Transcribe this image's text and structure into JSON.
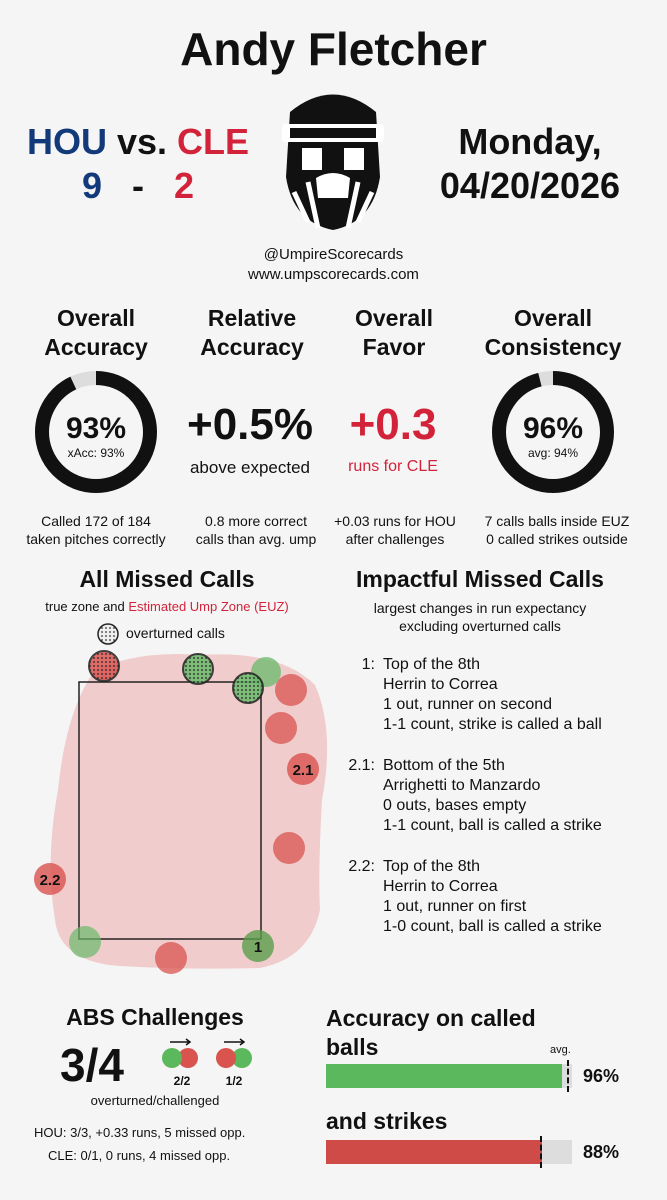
{
  "title": "Andy Fletcher",
  "teams": {
    "home": "HOU",
    "vs": "vs.",
    "away": "CLE",
    "home_score": "9",
    "dash": "-",
    "away_score": "2"
  },
  "date": {
    "line1": "Monday,",
    "line2": "04/20/2026"
  },
  "social": {
    "handle": "@UmpireScorecards",
    "site": "www.umpscorecards.com"
  },
  "metrics": {
    "accuracy": {
      "h1": "Overall",
      "h2": "Accuracy",
      "value": "93%",
      "sub": "xAcc: 93%",
      "fraction": 0.93,
      "desc1": "Called 172 of 184",
      "desc2": "taken pitches correctly"
    },
    "relative": {
      "h1": "Relative",
      "h2": "Accuracy",
      "value": "+0.5%",
      "sub": "above expected",
      "desc1": "0.8 more correct",
      "desc2": "calls than avg. ump"
    },
    "favor": {
      "h1": "Overall",
      "h2": "Favor",
      "value": "+0.3",
      "sub": "runs for CLE",
      "desc1": "+0.03 runs for HOU",
      "desc2": "after challenges"
    },
    "consistency": {
      "h1": "Overall",
      "h2": "Consistency",
      "value": "96%",
      "sub": "avg: 94%",
      "fraction": 0.96,
      "desc1": "7 calls balls inside EUZ",
      "desc2": "0 called strikes outside"
    }
  },
  "missed": {
    "title": "All Missed Calls",
    "subtitle_a": "true zone and ",
    "subtitle_b": "Estimated Ump Zone (EUZ)",
    "legend": "overturned calls",
    "labels": {
      "l1": "1",
      "l21": "2.1",
      "l22": "2.2"
    }
  },
  "impactful": {
    "title": "Impactful Missed Calls",
    "sub1": "largest changes in run expectancy",
    "sub2": "excluding overturned calls",
    "items": [
      {
        "num": "1:",
        "l1": "Top of the 8th",
        "l2": "Herrin to Correa",
        "l3": "1 out, runner on second",
        "l4": "1-1 count, strike is called a ball"
      },
      {
        "num": "2.1:",
        "l1": "Bottom of the 5th",
        "l2": "Arrighetti to Manzardo",
        "l3": "0 outs, bases empty",
        "l4": "1-1 count, ball is called a strike"
      },
      {
        "num": "2.2:",
        "l1": "Top of the 8th",
        "l2": "Herrin to Correa",
        "l3": "1 out, runner on first",
        "l4": "1-0 count, ball is called a strike"
      }
    ]
  },
  "abs": {
    "title": "ABS Challenges",
    "value": "3/4",
    "pair1": "2/2",
    "pair2": "1/2",
    "caption": "overturned/challenged",
    "hou": "HOU: 3/3, +0.33 runs, 5 missed opp.",
    "cle": "CLE: 0/1, 0 runs, 4 missed opp."
  },
  "called": {
    "title_balls_1": "Accuracy on called",
    "title_balls_2": "balls",
    "avg_label": "avg.",
    "balls_value": "96%",
    "balls_fraction": 0.96,
    "balls_avg": 0.98,
    "title_strikes": "and strikes",
    "strikes_value": "88%",
    "strikes_fraction": 0.88,
    "strikes_avg": 0.87
  },
  "colors": {
    "hou": "#123a7a",
    "cle": "#d2233a",
    "green": "#5cb85c",
    "red": "#cf4b48",
    "zone": "#f0c9c9"
  }
}
